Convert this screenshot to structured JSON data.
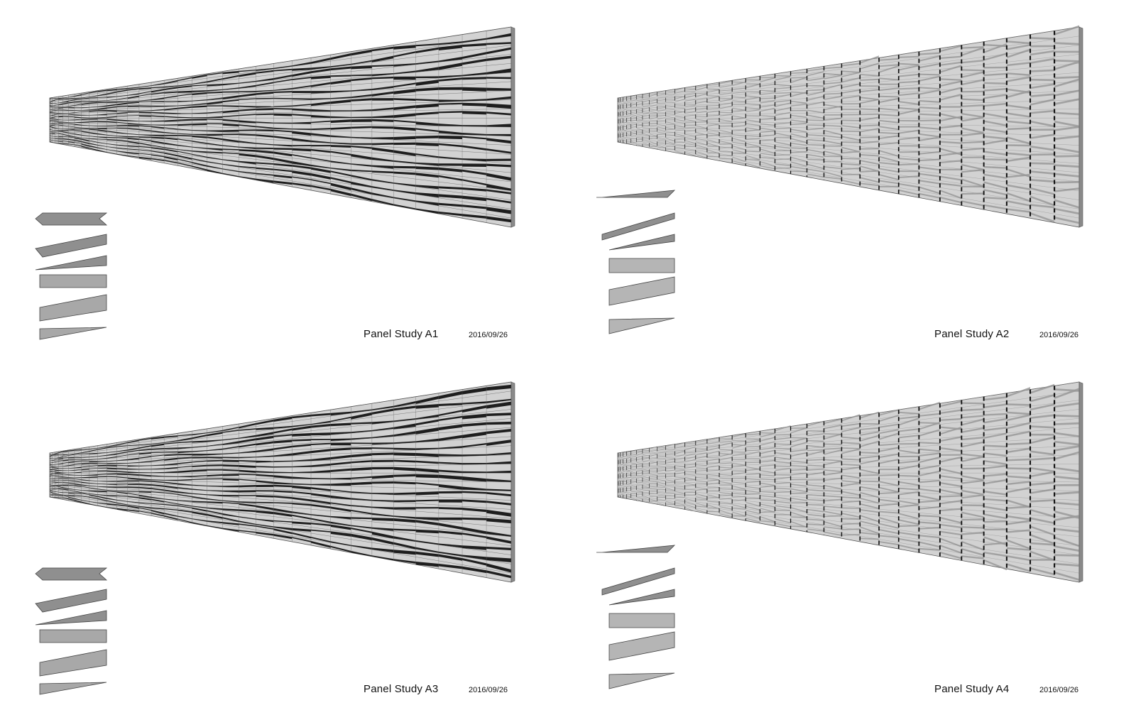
{
  "studies": [
    {
      "id": "a1",
      "title": "Panel Study A1",
      "date": "2016/09/26",
      "variant": "folded",
      "tone": "dark",
      "legend_color": "#a8a8a8"
    },
    {
      "id": "a2",
      "title": "Panel Study A2",
      "date": "2016/09/26",
      "variant": "louver",
      "tone": "light",
      "legend_color": "#b5b5b5"
    },
    {
      "id": "a3",
      "title": "Panel Study A3",
      "date": "2016/09/26",
      "variant": "folded",
      "tone": "dark",
      "legend_color": "#a8a8a8"
    },
    {
      "id": "a4",
      "title": "Panel Study A4",
      "date": "2016/09/26",
      "variant": "louver",
      "tone": "light",
      "legend_color": "#b5b5b5"
    }
  ],
  "colors": {
    "panel_light": "#d2d2d2",
    "panel_mid": "#9a9a9a",
    "panel_dark": "#1e1e1e",
    "edge": "#555555",
    "legend_stroke": "#444444"
  }
}
